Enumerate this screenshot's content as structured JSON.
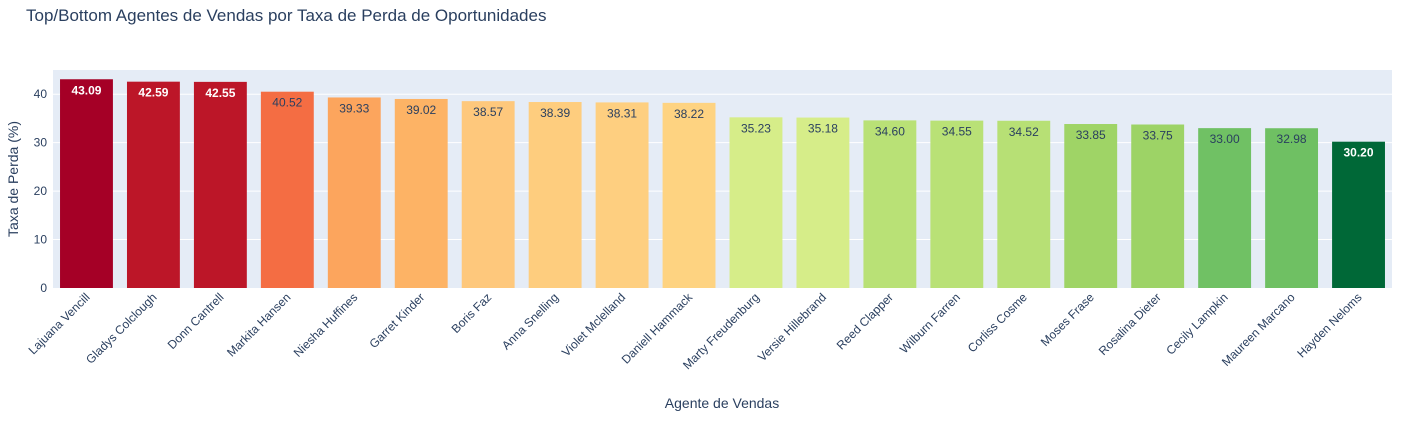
{
  "chart_data": {
    "type": "bar",
    "title": "Top/Bottom Agentes de Vendas por Taxa de Perda de Oportunidades",
    "xlabel": "Agente de Vendas",
    "ylabel": "Taxa de Perda (%)",
    "ylim": [
      0,
      45
    ],
    "yticks": [
      "0",
      "10",
      "20",
      "30",
      "40"
    ],
    "grid": true,
    "categories": [
      "Lajuana Vencill",
      "Gladys Colclough",
      "Donn Cantrell",
      "Markita Hansen",
      "Niesha Huffines",
      "Garret Kinder",
      "Boris Faz",
      "Anna Snelling",
      "Violet Mclelland",
      "Daniell Hammack",
      "Marty Freudenburg",
      "Versie Hillebrand",
      "Reed Clapper",
      "Wilburn Farren",
      "Corliss Cosme",
      "Moses Frase",
      "Rosalina Dieter",
      "Cecily Lampkin",
      "Maureen Marcano",
      "Hayden Neloms"
    ],
    "values": [
      43.09,
      42.59,
      42.55,
      40.52,
      39.33,
      39.02,
      38.57,
      38.39,
      38.31,
      38.22,
      35.23,
      35.18,
      34.6,
      34.55,
      34.52,
      33.85,
      33.75,
      33.0,
      32.98,
      30.2
    ],
    "labels": [
      "43.09",
      "42.59",
      "42.55",
      "40.52",
      "39.33",
      "39.02",
      "38.57",
      "38.39",
      "38.31",
      "38.22",
      "35.23",
      "35.18",
      "34.60",
      "34.55",
      "34.52",
      "33.85",
      "33.75",
      "33.00",
      "32.98",
      "30.20"
    ],
    "colors": [
      "#a50026",
      "#bc1628",
      "#bc1628",
      "#f46d43",
      "#fca55d",
      "#fdb365",
      "#fec87c",
      "#fecd7e",
      "#fecf80",
      "#fed381",
      "#d6ed89",
      "#d6ed89",
      "#b9e176",
      "#b9e176",
      "#b7e075",
      "#9fd466",
      "#9dd366",
      "#70c164",
      "#6fc063",
      "#006837"
    ],
    "label_colors": [
      "#ffffff",
      "#ffffff",
      "#ffffff",
      "#2a3f5f",
      "#2a3f5f",
      "#2a3f5f",
      "#2a3f5f",
      "#2a3f5f",
      "#2a3f5f",
      "#2a3f5f",
      "#2a3f5f",
      "#2a3f5f",
      "#2a3f5f",
      "#2a3f5f",
      "#2a3f5f",
      "#2a3f5f",
      "#2a3f5f",
      "#2a3f5f",
      "#2a3f5f",
      "#ffffff"
    ],
    "plot_background": "#e5ecf6",
    "gridline_color": "#ffffff",
    "text_color": "#2a3f5f"
  }
}
